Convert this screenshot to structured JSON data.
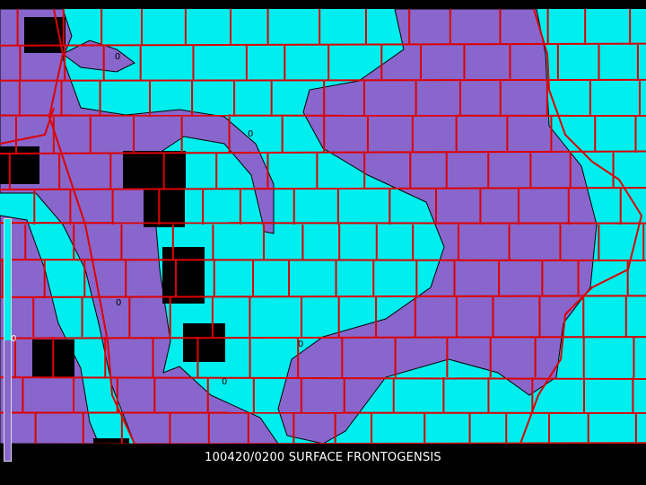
{
  "caption": "100420/0200 SURFACE FRONTOGENSIS",
  "colors": {
    "positive": "#00eeee",
    "negative": "#8866cc",
    "borders": "#dd0000",
    "missing": "#000000",
    "background": "#000000"
  },
  "colorbar": {
    "label": "0"
  },
  "contour_labels": [
    "0",
    "0",
    "0",
    "0",
    "0",
    "0"
  ]
}
